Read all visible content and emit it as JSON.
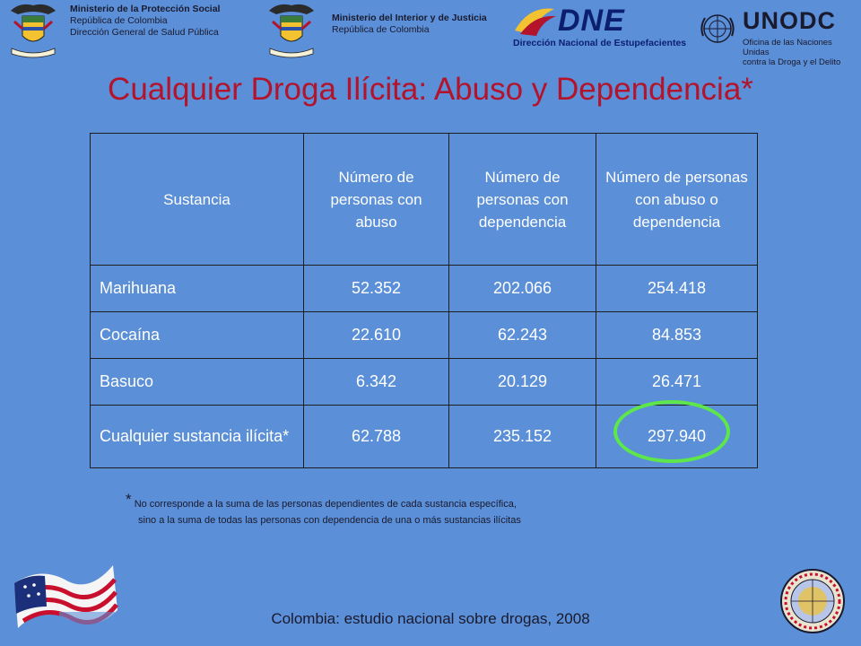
{
  "header": {
    "ministry_left": {
      "line1": "Ministerio de la Protección Social",
      "line2": "República de Colombia",
      "line3": "Dirección General de Salud Pública"
    },
    "ministry_right": {
      "line1": "Ministerio del Interior y de Justicia",
      "line2": "República de Colombia"
    },
    "dne": {
      "logo_text": "DNE",
      "subtitle": "Dirección Nacional de Estupefacientes"
    },
    "unodc": {
      "logo_text": "UNODC",
      "subtitle_line1": "Oficina de las Naciones Unidas",
      "subtitle_line2": "contra la Droga y el Delito"
    },
    "crest_motto": "Libertad y Orden"
  },
  "title": "Cualquier Droga Ilícita: Abuso y Dependencia*",
  "table": {
    "columns": [
      "Sustancia",
      "Número de personas con abuso",
      "Número de personas con dependencia",
      "Número de personas con abuso o dependencia"
    ],
    "rows": [
      {
        "sustancia": "Marihuana",
        "abuso": "52.352",
        "dependencia": "202.066",
        "total": "254.418"
      },
      {
        "sustancia": "Cocaína",
        "abuso": "22.610",
        "dependencia": "62.243",
        "total": "84.853"
      },
      {
        "sustancia": "Basuco",
        "abuso": "6.342",
        "dependencia": "20.129",
        "total": "26.471"
      },
      {
        "sustancia": "Cualquier sustancia ilícita*",
        "abuso": "62.788",
        "dependencia": "235.152",
        "total": "297.940"
      }
    ]
  },
  "note": {
    "star": "*",
    "line1": "No corresponde a la suma de las personas dependientes de cada sustancia específica,",
    "line2": "sino a la suma de todas las personas con dependencia de una o más sustancias ilícitas"
  },
  "footer": "Colombia: estudio nacional sobre drogas, 2008",
  "colors": {
    "background": "#5b8fd7",
    "title": "#b3132b",
    "highlight": "#5ee74a"
  }
}
